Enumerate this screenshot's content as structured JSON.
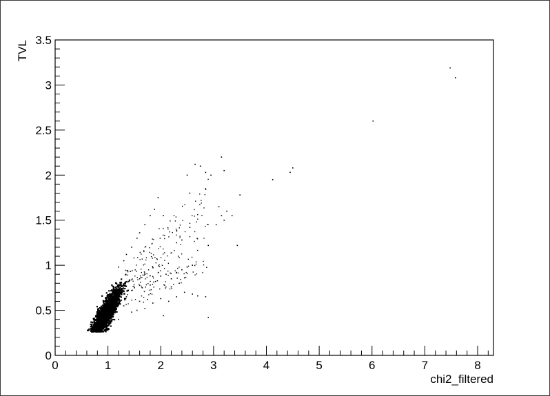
{
  "chart_data": {
    "type": "scatter",
    "title": "",
    "xlabel": "chi2_filtered",
    "ylabel": "TVL",
    "xlim": [
      0,
      8.3
    ],
    "ylim": [
      0,
      3.5
    ],
    "grid": false,
    "x_ticks": [
      "0",
      "1",
      "2",
      "3",
      "4",
      "5",
      "6",
      "7",
      "8"
    ],
    "y_ticks": [
      "0",
      "0.5",
      "1",
      "1.5",
      "2",
      "2.5",
      "3",
      "3.5"
    ],
    "dense_cluster": {
      "description_points": [
        [
          0.62,
          0.28
        ],
        [
          0.75,
          0.33
        ],
        [
          0.85,
          0.38
        ],
        [
          0.95,
          0.45
        ],
        [
          1.05,
          0.52
        ],
        [
          1.15,
          0.62
        ],
        [
          1.2,
          0.7
        ],
        [
          1.25,
          0.78
        ],
        [
          0.9,
          0.42
        ],
        [
          1.0,
          0.48
        ]
      ],
      "center": [
        0.95,
        0.45
      ],
      "count": 2600
    },
    "sparse_points": [
      [
        1.2,
        0.98
      ],
      [
        1.3,
        1.05
      ],
      [
        1.35,
        1.12
      ],
      [
        1.45,
        1.2
      ],
      [
        1.55,
        1.3
      ],
      [
        1.6,
        1.36
      ],
      [
        1.7,
        1.45
      ],
      [
        1.8,
        1.55
      ],
      [
        1.88,
        1.62
      ],
      [
        1.95,
        1.75
      ],
      [
        2.05,
        1.55
      ],
      [
        1.4,
        0.82
      ],
      [
        1.5,
        0.75
      ],
      [
        1.6,
        0.85
      ],
      [
        1.7,
        0.9
      ],
      [
        1.8,
        0.78
      ],
      [
        1.9,
        0.82
      ],
      [
        2.0,
        0.88
      ],
      [
        2.1,
        0.9
      ],
      [
        2.2,
        0.85
      ],
      [
        2.3,
        0.92
      ],
      [
        2.4,
        0.95
      ],
      [
        2.5,
        0.98
      ],
      [
        2.6,
        1.0
      ],
      [
        2.2,
        0.76
      ],
      [
        2.35,
        0.8
      ],
      [
        2.45,
        0.86
      ],
      [
        1.6,
        0.6
      ],
      [
        1.75,
        0.62
      ],
      [
        1.85,
        0.58
      ],
      [
        2.0,
        0.63
      ],
      [
        2.15,
        0.6
      ],
      [
        2.3,
        0.65
      ],
      [
        2.45,
        0.7
      ],
      [
        2.6,
        0.68
      ],
      [
        2.7,
        0.66
      ],
      [
        2.85,
        0.65
      ],
      [
        2.9,
        0.42
      ],
      [
        1.55,
        0.5
      ],
      [
        1.7,
        0.52
      ],
      [
        1.45,
        0.48
      ],
      [
        2.05,
        0.44
      ],
      [
        2.3,
        1.25
      ],
      [
        2.4,
        1.28
      ],
      [
        2.55,
        1.42
      ],
      [
        2.55,
        1.8
      ],
      [
        2.5,
        2.0
      ],
      [
        2.65,
        2.12
      ],
      [
        2.75,
        2.1
      ],
      [
        2.85,
        2.03
      ],
      [
        2.9,
        1.22
      ],
      [
        3.05,
        1.45
      ],
      [
        3.1,
        1.65
      ],
      [
        3.15,
        1.55
      ],
      [
        3.2,
        1.5
      ],
      [
        3.25,
        1.6
      ],
      [
        3.35,
        1.55
      ],
      [
        3.45,
        1.22
      ],
      [
        3.5,
        1.78
      ],
      [
        3.15,
        2.2
      ],
      [
        3.2,
        2.05
      ],
      [
        2.95,
        2.0
      ],
      [
        4.12,
        1.95
      ],
      [
        4.45,
        2.03
      ],
      [
        4.5,
        2.08
      ],
      [
        6.02,
        2.6
      ],
      [
        7.48,
        3.19
      ],
      [
        7.58,
        3.08
      ],
      [
        1.0,
        0.28
      ],
      [
        0.95,
        0.27
      ],
      [
        0.7,
        0.27
      ],
      [
        1.2,
        0.4
      ],
      [
        1.3,
        0.55
      ],
      [
        1.35,
        0.65
      ],
      [
        1.45,
        0.72
      ]
    ]
  }
}
